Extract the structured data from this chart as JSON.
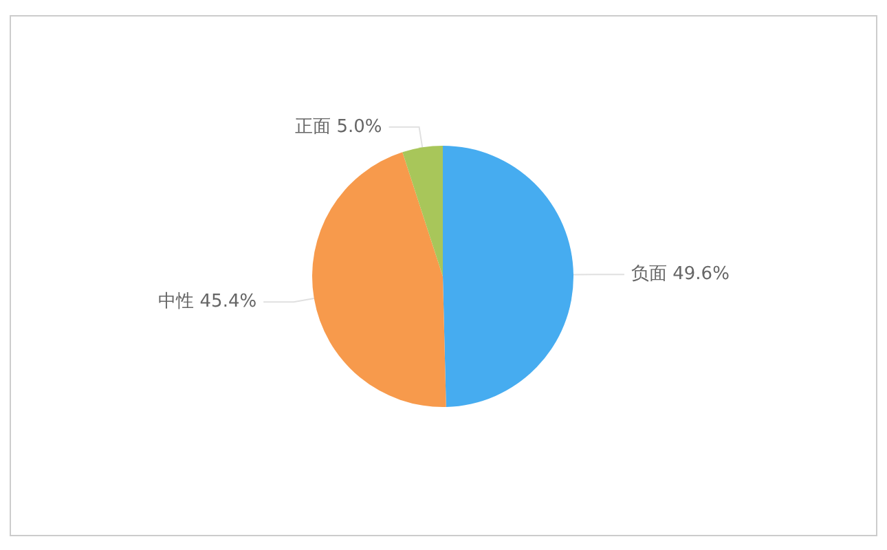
{
  "chart_data": {
    "type": "pie",
    "categories": [
      "负面",
      "中性",
      "正面"
    ],
    "values": [
      49.6,
      45.4,
      5.0
    ],
    "colors": [
      "#46acf0",
      "#f79a4c",
      "#a8c65a"
    ],
    "value_labels": [
      "49.6%",
      "45.4%",
      "5.0%"
    ],
    "legend": false
  }
}
